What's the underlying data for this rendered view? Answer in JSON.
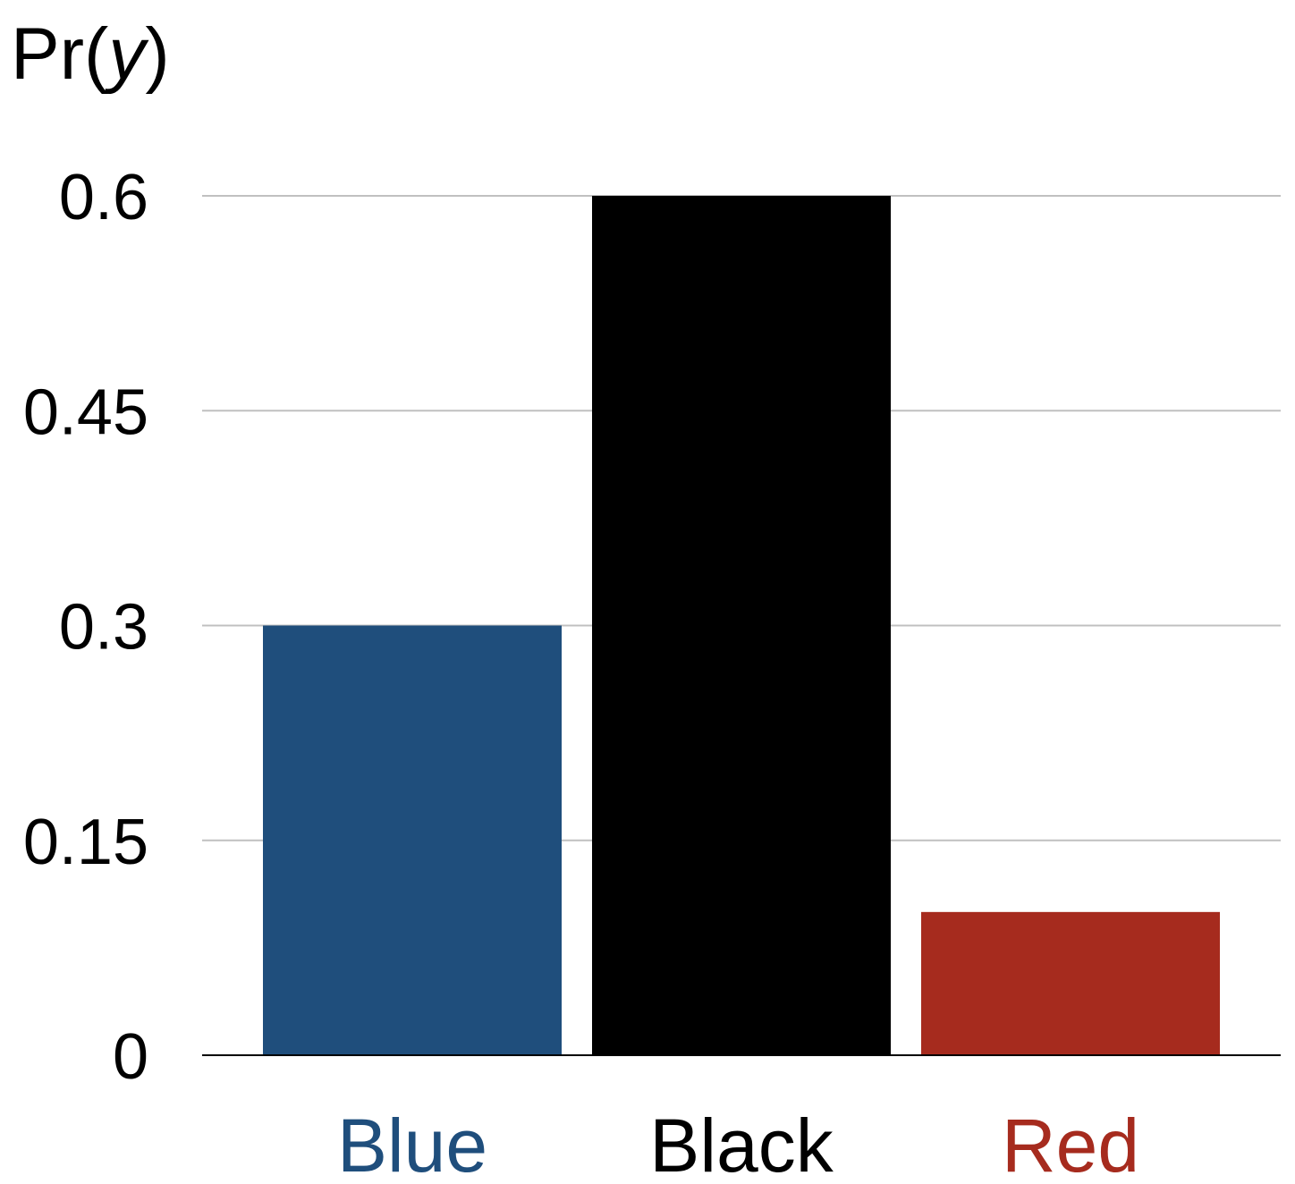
{
  "chart_data": {
    "type": "bar",
    "title": "",
    "ylabel": {
      "prefix": "Pr(",
      "variable": "y",
      "suffix": ")"
    },
    "xlabel": "",
    "categories": [
      "Blue",
      "Black",
      "Red"
    ],
    "values": [
      0.3,
      0.6,
      0.1
    ],
    "colors": [
      "#1f4e7c",
      "#000000",
      "#a62b1e"
    ],
    "label_colors": [
      "#1f4e7c",
      "#000000",
      "#a62b1e"
    ],
    "ylim": [
      0,
      0.6
    ],
    "yticks": [
      0,
      0.15,
      0.3,
      0.45,
      0.6
    ],
    "ytick_labels": [
      "0",
      "0.15",
      "0.3",
      "0.45",
      "0.6"
    ],
    "grid": true,
    "grid_color": "#c0c0c0",
    "legend": "none"
  }
}
